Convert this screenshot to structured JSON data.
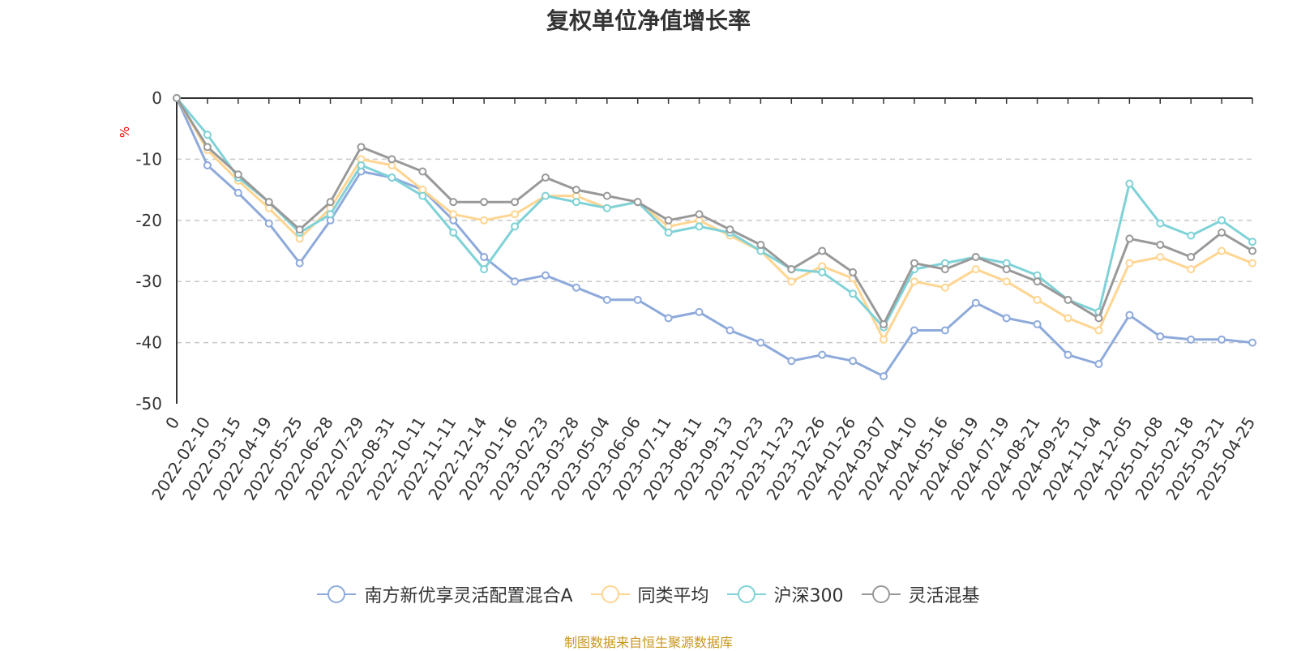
{
  "chart_data": {
    "type": "line",
    "title": "复权单位净值增长率",
    "ylabel": "%",
    "ylim": [
      -50,
      0
    ],
    "yticks": [
      "0",
      "-10",
      "-20",
      "-30",
      "-40",
      "-50"
    ],
    "ytick_values": [
      0,
      -10,
      -20,
      -30,
      -40,
      -50
    ],
    "grid": true,
    "legend_position": "bottom",
    "xtick_labels": [
      "0",
      "2022-02-10",
      "2022-03-15",
      "2022-04-19",
      "2022-05-25",
      "2022-06-28",
      "2022-07-29",
      "2022-08-31",
      "2022-10-11",
      "2022-11-11",
      "2022-12-14",
      "2023-01-16",
      "2023-02-23",
      "2023-03-28",
      "2023-05-04",
      "2023-06-06",
      "2023-07-11",
      "2023-08-11",
      "2023-09-13",
      "2023-10-23",
      "2023-11-23",
      "2023-12-26",
      "2024-01-26",
      "2024-03-07",
      "2024-04-10",
      "2024-05-16",
      "2024-06-19",
      "2024-07-19",
      "2024-08-21",
      "2024-09-25",
      "2024-11-04",
      "2024-12-05",
      "2025-01-08",
      "2025-02-18",
      "2025-03-21",
      "2025-04-25"
    ],
    "series": [
      {
        "name": "南方新优享灵活配置混合A",
        "color": "#8eaadb",
        "values": [
          0,
          -11,
          -15.5,
          -20.5,
          -27,
          -20,
          -12,
          -13,
          -15,
          -20,
          -26,
          -30,
          -29,
          -31,
          -33,
          -33,
          -36,
          -35,
          -38,
          -40,
          -43,
          -42,
          -43,
          -45.5,
          -38,
          -38,
          -33.5,
          -36,
          -37,
          -42,
          -43.5,
          -35.5,
          -39,
          -39.5,
          -39.5,
          -40
        ]
      },
      {
        "name": "同类平均",
        "color": "#ffd591",
        "values": [
          0,
          -8.5,
          -13.5,
          -18,
          -23,
          -18,
          -10,
          -11,
          -15,
          -19,
          -20,
          -19,
          -16,
          -16,
          -18,
          -17,
          -21,
          -20,
          -22.5,
          -25,
          -30,
          -27.5,
          -29.5,
          -39.5,
          -30,
          -31,
          -28,
          -30,
          -33,
          -36,
          -38,
          -27,
          -26,
          -28,
          -25,
          -27
        ]
      },
      {
        "name": "沪深300",
        "color": "#7fd2d7",
        "values": [
          0,
          -6,
          -13,
          -17,
          -22,
          -19,
          -11,
          -13,
          -16,
          -22,
          -28,
          -21,
          -16,
          -17,
          -18,
          -17,
          -22,
          -21,
          -22,
          -25,
          -28,
          -28.5,
          -32,
          -37.5,
          -28,
          -27,
          -26,
          -27,
          -29,
          -33,
          -35,
          -14,
          -20.5,
          -22.5,
          -20,
          -23.5
        ]
      },
      {
        "name": "灵活混基",
        "color": "#999999",
        "values": [
          0,
          -8,
          -12.5,
          -17,
          -21.5,
          -17,
          -8,
          -10,
          -12,
          -17,
          -17,
          -17,
          -13,
          -15,
          -16,
          -17,
          -20,
          -19,
          -21.5,
          -24,
          -28,
          -25,
          -28.5,
          -37,
          -27,
          -28,
          -26,
          -28,
          -30,
          -33,
          -36,
          -23,
          -24,
          -26,
          -22,
          -25
        ]
      }
    ]
  },
  "footer": {
    "source": "制图数据来自恒生聚源数据库"
  }
}
